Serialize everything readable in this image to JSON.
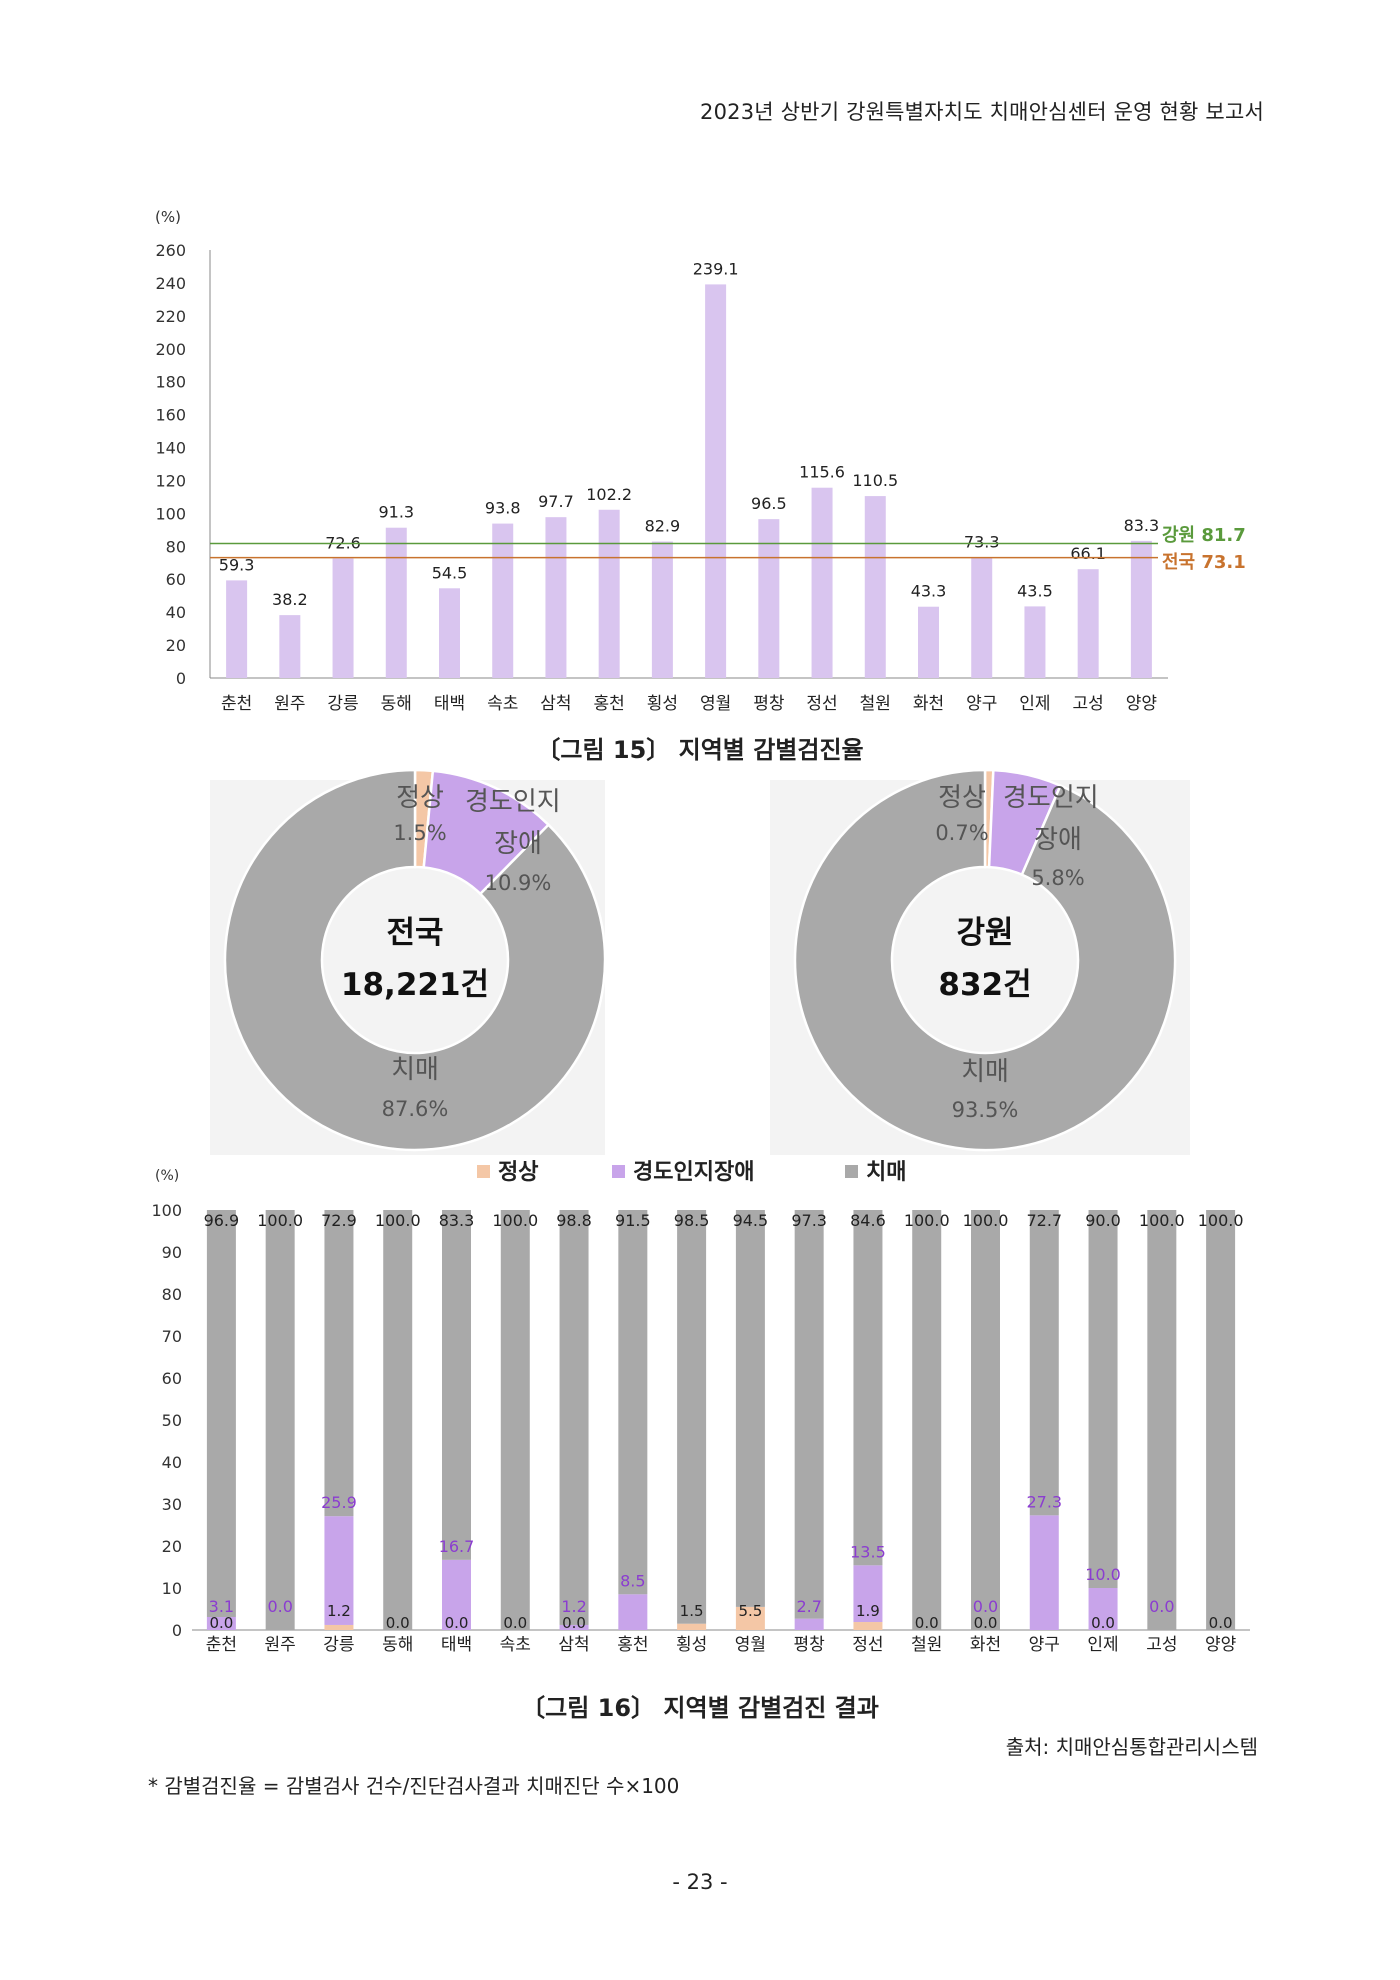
{
  "header": {
    "title": "2023년 상반기 강원특별자치도 치매안심센터 운영 현황 보고서"
  },
  "fig15": {
    "caption": "〔그림 15〕 지역별 감별검진율"
  },
  "fig16": {
    "caption": "〔그림 16〕 지역별 감별검진 결과"
  },
  "source": "출처: 치매안심통합관리시스템",
  "footnote": "* 감별검진율 = 감별검사 건수/진단검사결과 치매진단 수×100",
  "page_number": "- 23 -",
  "colors": {
    "bar": "#d9c5ef",
    "green": "#5a9a3c",
    "orange": "#c8732e",
    "normal": "#f4c7a6",
    "mci": "#c8a4ea",
    "dementia": "#a9a9a9",
    "mci_label": "#8b3dd0"
  },
  "chart_data": [
    {
      "type": "bar",
      "ylabel": "(%)",
      "ylim": [
        0,
        260
      ],
      "yticks": [
        0,
        20,
        40,
        60,
        80,
        100,
        120,
        140,
        160,
        180,
        200,
        220,
        240,
        260
      ],
      "categories": [
        "춘천",
        "원주",
        "강릉",
        "동해",
        "태백",
        "속초",
        "삼척",
        "홍천",
        "횡성",
        "영월",
        "평창",
        "정선",
        "철원",
        "화천",
        "양구",
        "인제",
        "고성",
        "양양"
      ],
      "values": [
        59.3,
        38.2,
        72.6,
        91.3,
        54.5,
        93.8,
        97.7,
        102.2,
        82.9,
        239.1,
        96.5,
        115.6,
        110.5,
        43.3,
        73.3,
        43.5,
        66.1,
        83.3
      ],
      "reference_lines": [
        {
          "name": "강원",
          "value": 81.7,
          "label": "강원 81.7"
        },
        {
          "name": "전국",
          "value": 73.1,
          "label": "전국 73.1"
        }
      ]
    },
    {
      "type": "pie",
      "center_title": "전국",
      "center_total": "18,221건",
      "slices": [
        {
          "name": "정상",
          "value": 1.5,
          "label": "1.5%"
        },
        {
          "name": "경도인지장애",
          "value": 10.9,
          "label": "10.9%"
        },
        {
          "name": "치매",
          "value": 87.6,
          "label": "87.6%"
        }
      ]
    },
    {
      "type": "pie",
      "center_title": "강원",
      "center_total": "832건",
      "slices": [
        {
          "name": "정상",
          "value": 0.7,
          "label": "0.7%"
        },
        {
          "name": "경도인지장애",
          "value": 5.8,
          "label": "5.8%"
        },
        {
          "name": "치매",
          "value": 93.5,
          "label": "93.5%"
        }
      ]
    },
    {
      "type": "bar",
      "stacked": true,
      "ylabel": "(%)",
      "ylim": [
        0,
        100
      ],
      "yticks": [
        0,
        10,
        20,
        30,
        40,
        50,
        60,
        70,
        80,
        90,
        100
      ],
      "legend": [
        "정상",
        "경도인지장애",
        "치매"
      ],
      "legend_position": "top",
      "categories": [
        "춘천",
        "원주",
        "강릉",
        "동해",
        "태백",
        "속초",
        "삼척",
        "홍천",
        "횡성",
        "영월",
        "평창",
        "정선",
        "철원",
        "화천",
        "양구",
        "인제",
        "고성",
        "양양"
      ],
      "series": [
        {
          "name": "정상",
          "values": [
            0.0,
            0.0,
            1.2,
            0.0,
            0.0,
            0.0,
            0.0,
            0.0,
            1.5,
            5.5,
            0.0,
            1.9,
            0.0,
            0.0,
            0.0,
            0.0,
            0.0,
            0.0
          ],
          "labels": [
            "0.0",
            "",
            "1.2",
            "0.0",
            "0.0",
            "0.0",
            "0.0",
            "",
            "1.5",
            "5.5",
            "",
            "1.9",
            "0.0",
            "0.0",
            "",
            "0.0",
            "",
            "0.0"
          ]
        },
        {
          "name": "경도인지장애",
          "values": [
            3.1,
            0.0,
            25.9,
            0.0,
            16.7,
            0.0,
            1.2,
            8.5,
            0.0,
            0.0,
            2.7,
            13.5,
            0.0,
            0.0,
            27.3,
            10.0,
            0.0,
            0.0
          ],
          "labels": [
            "3.1",
            "0.0",
            "25.9",
            "",
            "16.7",
            "",
            "1.2",
            "8.5",
            "",
            "",
            "2.7",
            "13.5",
            "",
            "0.0",
            "27.3",
            "10.0",
            "0.0",
            ""
          ]
        },
        {
          "name": "치매",
          "values": [
            96.9,
            100.0,
            72.9,
            100.0,
            83.3,
            100.0,
            98.8,
            91.5,
            98.5,
            94.5,
            97.3,
            84.6,
            100.0,
            100.0,
            72.7,
            90.0,
            100.0,
            100.0
          ],
          "labels": [
            "96.9",
            "100.0",
            "72.9",
            "100.0",
            "83.3",
            "100.0",
            "98.8",
            "91.5",
            "98.5",
            "94.5",
            "97.3",
            "84.6",
            "100.0",
            "100.0",
            "72.7",
            "90.0",
            "100.0",
            "100.0"
          ]
        }
      ]
    }
  ]
}
